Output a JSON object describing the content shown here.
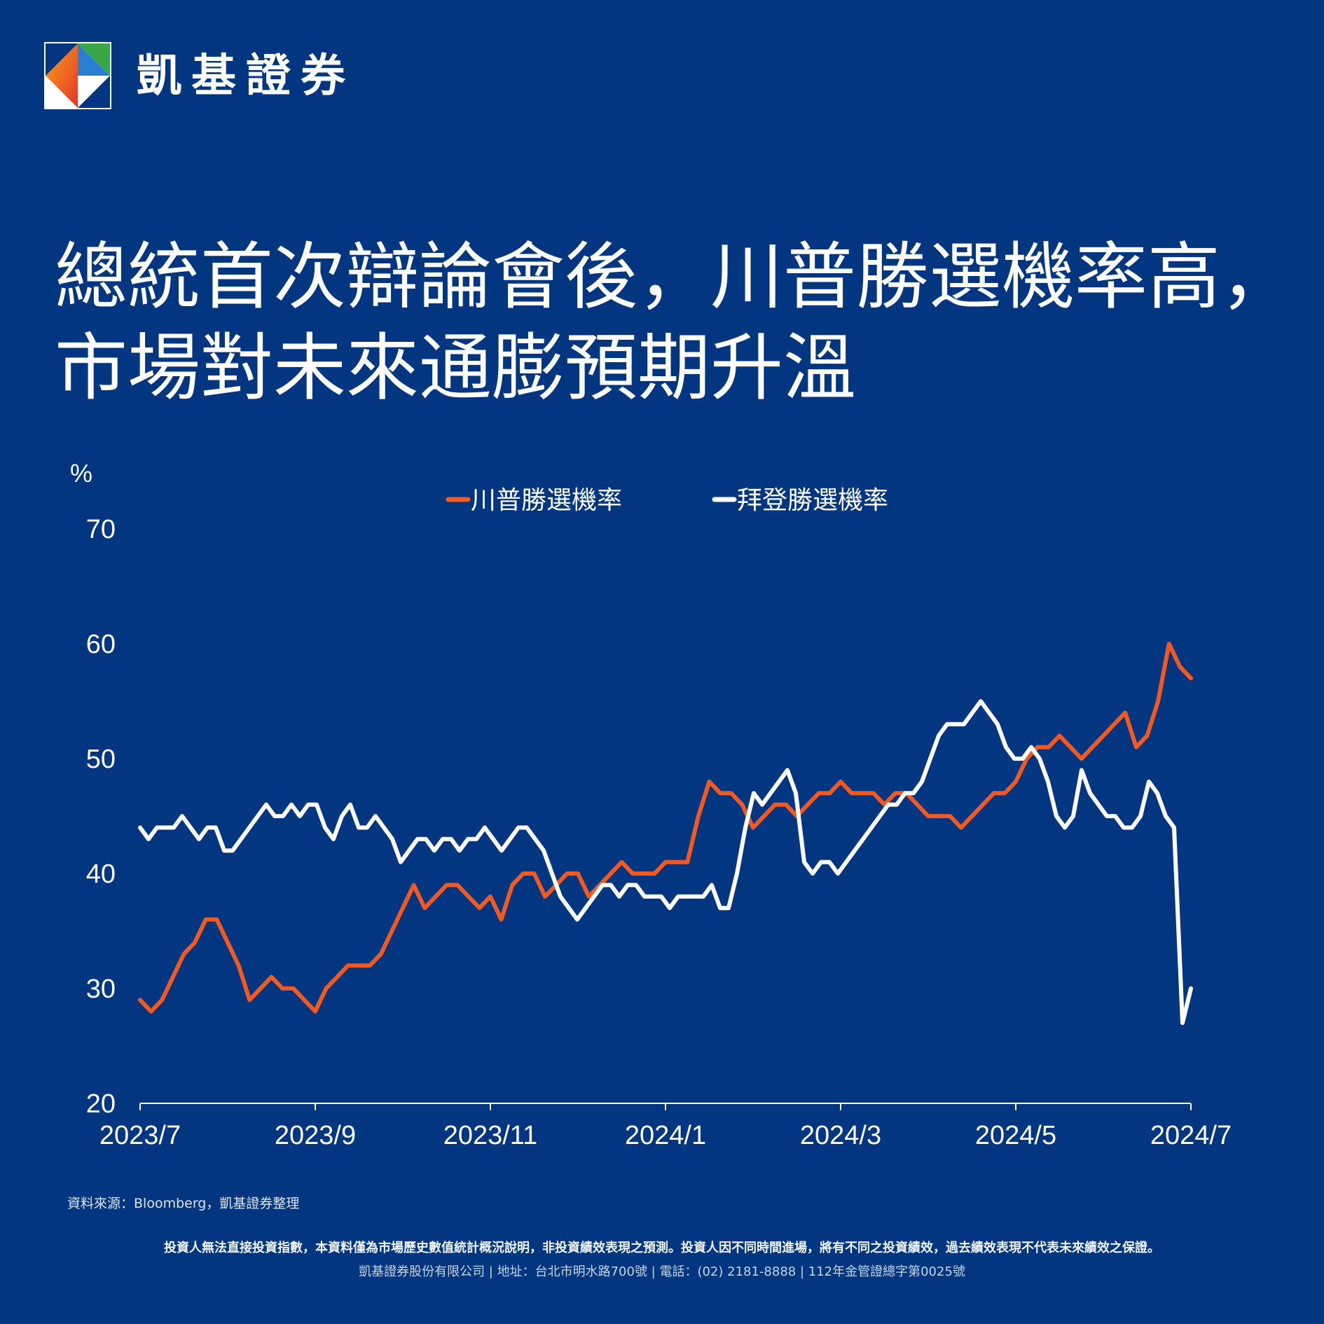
{
  "brand": {
    "name": "凱基證券"
  },
  "title": {
    "line1": "總統首次辯論會後，川普勝選機率高，",
    "line2": "市場對未來通膨預期升溫"
  },
  "colors": {
    "background": "#033680",
    "trump": "#f05a22",
    "biden": "#ffffff"
  },
  "chart_data": {
    "type": "line",
    "ylabel": "%",
    "ylim": [
      20,
      70
    ],
    "yticks": [
      "70",
      "60",
      "50",
      "40",
      "30",
      "20"
    ],
    "xticks": [
      "2023/7",
      "2023/9",
      "2023/11",
      "2024/1",
      "2024/3",
      "2024/5",
      "2024/7"
    ],
    "x_range": [
      "2023/7",
      "2024/7"
    ],
    "legend_placement": "top-center",
    "grid": false,
    "series": [
      {
        "name": "川普勝選機率",
        "color": "#f05a22",
        "points": [
          [
            "2023/7",
            29
          ],
          [
            "2023/7",
            28
          ],
          [
            "2023/7",
            29
          ],
          [
            "2023/7",
            31
          ],
          [
            "2023/7",
            33
          ],
          [
            "2023/7",
            34
          ],
          [
            "2023/7",
            36
          ],
          [
            "2023/7",
            36
          ],
          [
            "2023/8",
            34
          ],
          [
            "2023/8",
            32
          ],
          [
            "2023/8",
            29
          ],
          [
            "2023/8",
            30
          ],
          [
            "2023/8",
            31
          ],
          [
            "2023/8",
            30
          ],
          [
            "2023/8",
            30
          ],
          [
            "2023/8",
            29
          ],
          [
            "2023/8",
            28
          ],
          [
            "2023/8",
            30
          ],
          [
            "2023/9",
            31
          ],
          [
            "2023/9",
            32
          ],
          [
            "2023/9",
            32
          ],
          [
            "2023/9",
            32
          ],
          [
            "2023/9",
            33
          ],
          [
            "2023/9",
            35
          ],
          [
            "2023/9",
            37
          ],
          [
            "2023/9",
            39
          ],
          [
            "2023/10",
            37
          ],
          [
            "2023/10",
            38
          ],
          [
            "2023/10",
            39
          ],
          [
            "2023/10",
            39
          ],
          [
            "2023/10",
            38
          ],
          [
            "2023/10",
            37
          ],
          [
            "2023/10",
            38
          ],
          [
            "2023/10",
            36
          ],
          [
            "2023/11",
            39
          ],
          [
            "2023/11",
            40
          ],
          [
            "2023/11",
            40
          ],
          [
            "2023/11",
            38
          ],
          [
            "2023/11",
            39
          ],
          [
            "2023/11",
            40
          ],
          [
            "2023/11",
            40
          ],
          [
            "2023/12",
            38
          ],
          [
            "2023/12",
            39
          ],
          [
            "2023/12",
            40
          ],
          [
            "2023/12",
            41
          ],
          [
            "2023/12",
            40
          ],
          [
            "2023/12",
            40
          ],
          [
            "2023/12",
            40
          ],
          [
            "2024/1",
            41
          ],
          [
            "2024/1",
            41
          ],
          [
            "2024/1",
            41
          ],
          [
            "2024/1",
            45
          ],
          [
            "2024/1",
            48
          ],
          [
            "2024/1",
            47
          ],
          [
            "2024/2",
            47
          ],
          [
            "2024/2",
            46
          ],
          [
            "2024/2",
            44
          ],
          [
            "2024/2",
            45
          ],
          [
            "2024/2",
            46
          ],
          [
            "2024/2",
            46
          ],
          [
            "2024/2",
            45
          ],
          [
            "2024/3",
            46
          ],
          [
            "2024/3",
            47
          ],
          [
            "2024/3",
            47
          ],
          [
            "2024/3",
            48
          ],
          [
            "2024/3",
            47
          ],
          [
            "2024/3",
            47
          ],
          [
            "2024/3",
            47
          ],
          [
            "2024/3",
            46
          ],
          [
            "2024/4",
            47
          ],
          [
            "2024/4",
            47
          ],
          [
            "2024/4",
            46
          ],
          [
            "2024/4",
            45
          ],
          [
            "2024/4",
            45
          ],
          [
            "2024/4",
            45
          ],
          [
            "2024/4",
            44
          ],
          [
            "2024/5",
            45
          ],
          [
            "2024/5",
            46
          ],
          [
            "2024/5",
            47
          ],
          [
            "2024/5",
            47
          ],
          [
            "2024/5",
            48
          ],
          [
            "2024/5",
            50
          ],
          [
            "2024/5",
            51
          ],
          [
            "2024/6",
            51
          ],
          [
            "2024/6",
            52
          ],
          [
            "2024/6",
            51
          ],
          [
            "2024/6",
            50
          ],
          [
            "2024/6",
            51
          ],
          [
            "2024/6",
            52
          ],
          [
            "2024/6",
            53
          ],
          [
            "2024/6",
            54
          ],
          [
            "2024/6",
            51
          ],
          [
            "2024/6",
            52
          ],
          [
            "2024/6",
            55
          ],
          [
            "2024/7",
            60
          ],
          [
            "2024/7",
            58
          ],
          [
            "2024/7",
            57
          ]
        ],
        "values": [
          29,
          28,
          29,
          31,
          33,
          34,
          36,
          36,
          34,
          32,
          29,
          30,
          31,
          30,
          30,
          29,
          28,
          30,
          31,
          32,
          32,
          32,
          33,
          35,
          37,
          39,
          37,
          38,
          39,
          39,
          38,
          37,
          38,
          36,
          39,
          40,
          40,
          38,
          39,
          40,
          40,
          38,
          39,
          40,
          41,
          40,
          40,
          40,
          41,
          41,
          41,
          45,
          48,
          47,
          47,
          46,
          44,
          45,
          46,
          46,
          45,
          46,
          47,
          47,
          48,
          47,
          47,
          47,
          46,
          47,
          47,
          46,
          45,
          45,
          45,
          44,
          45,
          46,
          47,
          47,
          48,
          50,
          51,
          51,
          52,
          51,
          50,
          51,
          52,
          53,
          54,
          51,
          52,
          55,
          60,
          58,
          57
        ]
      },
      {
        "name": "拜登勝選機率",
        "color": "#ffffff",
        "values": [
          44,
          43,
          44,
          44,
          44,
          45,
          44,
          43,
          44,
          44,
          42,
          42,
          43,
          44,
          45,
          46,
          45,
          45,
          46,
          45,
          46,
          46,
          44,
          43,
          45,
          46,
          44,
          44,
          45,
          44,
          43,
          41,
          42,
          43,
          43,
          42,
          43,
          43,
          42,
          43,
          43,
          44,
          43,
          42,
          43,
          44,
          44,
          43,
          42,
          40,
          38,
          37,
          36,
          37,
          38,
          39,
          39,
          38,
          39,
          39,
          38,
          38,
          38,
          37,
          38,
          38,
          38,
          38,
          39,
          37,
          37,
          40,
          44,
          47,
          46,
          47,
          48,
          49,
          47,
          41,
          40,
          41,
          41,
          40,
          41,
          42,
          43,
          44,
          45,
          46,
          46,
          47,
          47,
          48,
          50,
          52,
          53,
          53,
          53,
          54,
          55,
          54,
          53,
          51,
          50,
          50,
          51,
          50,
          48,
          45,
          44,
          45,
          49,
          47,
          46,
          45,
          45,
          44,
          44,
          45,
          48,
          47,
          45,
          44,
          27,
          30
        ]
      }
    ]
  },
  "source": "資料來源：Bloomberg，凱基證券整理",
  "disclaimer": "投資人無法直接投資指數，本資料僅為市場歷史數值統計概況說明，非投資績效表現之預測。投資人因不同時間進場，將有不同之投資績效，過去績效表現不代表未來績效之保證。",
  "footer": "凱基證券股份有限公司 | 地址：台北市明水路700號 | 電話：(02) 2181-8888 | 112年金管證總字第0025號"
}
